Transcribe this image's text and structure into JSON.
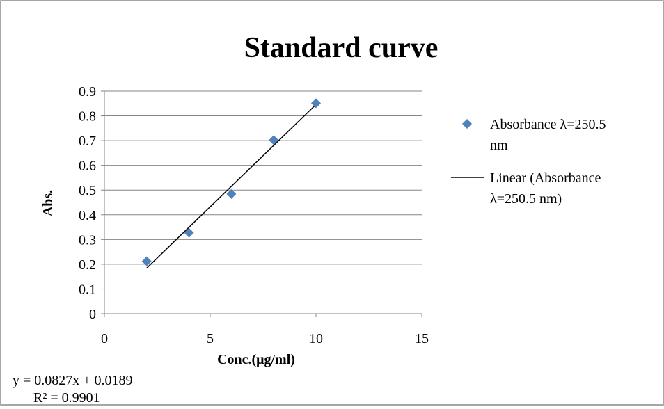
{
  "chart_data": {
    "type": "scatter",
    "title": "Standard curve",
    "xlabel": "Conc.(μg/ml)",
    "ylabel": "Abs.",
    "xlim": [
      0,
      15
    ],
    "ylim": [
      0,
      0.9
    ],
    "x_ticks": [
      0,
      5,
      10,
      15
    ],
    "y_ticks": [
      0,
      0.1,
      0.2,
      0.3,
      0.4,
      0.5,
      0.6,
      0.7,
      0.8,
      0.9
    ],
    "x_tick_labels": [
      "0",
      "5",
      "10",
      "15"
    ],
    "y_tick_labels": [
      "0",
      "0.1",
      "0.2",
      "0.3",
      "0.4",
      "0.5",
      "0.6",
      "0.7",
      "0.8",
      "0.9"
    ],
    "grid": "horizontal",
    "legend_position": "right",
    "series": [
      {
        "name": "Absorbance λ=250.5 nm",
        "marker": "diamond",
        "color": "#4F81BD",
        "x": [
          2,
          4,
          6,
          8,
          10
        ],
        "y": [
          0.212,
          0.327,
          0.484,
          0.702,
          0.851
        ]
      }
    ],
    "trendline": {
      "name": "Linear (Absorbance λ=250.5 nm)",
      "color": "#000000",
      "slope": 0.0827,
      "intercept": 0.0189,
      "x_range": [
        2,
        10
      ]
    },
    "legend": {
      "marker_label_lines": [
        "Absorbance λ=250.5",
        "nm"
      ],
      "line_label_lines": [
        "Linear (Absorbance",
        "λ=250.5 nm)"
      ]
    },
    "annotations": {
      "equation": "y = 0.0827x + 0.0189",
      "r_squared": "R² = 0.9901"
    }
  }
}
